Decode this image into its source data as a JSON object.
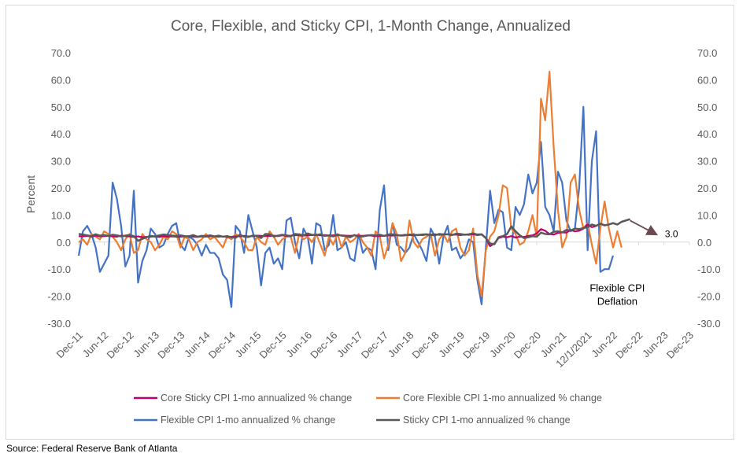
{
  "source": "Source: Federal Reserve Bank of Atlanta",
  "chart_data": {
    "type": "line",
    "title": "Core, Flexible, and Sticky CPI, 1-Month Change, Annualized",
    "ylabel": "Percent",
    "ylim": [
      -30,
      70
    ],
    "y_ticks": [
      "70.0",
      "60.0",
      "50.0",
      "40.0",
      "30.0",
      "20.0",
      "10.0",
      "0.0",
      "-10.0",
      "-20.0",
      "-30.0"
    ],
    "y_tick_values": [
      70,
      60,
      50,
      40,
      30,
      20,
      10,
      0,
      -10,
      -20,
      -30
    ],
    "x_tick_labels": [
      "Dec-11",
      "Jun-12",
      "Dec-12",
      "Jun-13",
      "Dec-13",
      "Jun-14",
      "Dec-14",
      "Jun-15",
      "Dec-15",
      "Jun-16",
      "Dec-16",
      "Jun-17",
      "Dec-17",
      "Jun-18",
      "Dec-18",
      "Jun-19",
      "Dec-19",
      "Jun-20",
      "Dec-20",
      "Jun-21",
      "12/1/2021",
      "Jun-22",
      "Dec-22",
      "Jun-23",
      "Dec-23"
    ],
    "x_start": "Dec-11",
    "x_end": "Dec-23",
    "grid": false,
    "legend_position": "bottom",
    "annotations": [
      {
        "text": "3.0",
        "from": {
          "x": "Oct-22",
          "y": 8.0
        },
        "to": {
          "x": "Apr-23",
          "y": 3.0
        },
        "color": "#6b4a52"
      },
      {
        "text": "Flexible CPI",
        "x": "Jul-22",
        "y": -17
      },
      {
        "text": "Deflation",
        "x": "Jul-22",
        "y": -22
      }
    ],
    "series": [
      {
        "name": "Core Sticky CPI 1-mo annualized % change",
        "color": "#c0006b",
        "values": [
          2.2,
          2.1,
          2.3,
          2.0,
          2.4,
          2.1,
          2.2,
          2.3,
          2.1,
          2.0,
          2.4,
          2.2,
          2.1,
          1.9,
          2.1,
          1.8,
          1.9,
          2.0,
          2.1,
          1.9,
          2.2,
          2.0,
          2.1,
          2.0,
          2.0,
          2.1,
          2.2,
          2.0,
          1.9,
          2.1,
          2.0,
          2.2,
          2.1,
          2.0,
          2.1,
          1.9,
          2.0,
          2.1,
          2.2,
          2.3,
          2.1,
          2.2,
          2.4,
          2.3,
          2.2,
          2.3,
          2.4,
          2.2,
          2.5,
          2.3,
          2.4,
          2.6,
          2.5,
          2.4,
          2.5,
          2.6,
          2.7,
          2.5,
          2.6,
          2.4,
          2.5,
          2.6,
          2.5,
          2.4,
          2.3,
          2.5,
          2.4,
          2.3,
          2.5,
          2.4,
          2.2,
          2.3,
          2.3,
          2.5,
          2.4,
          2.6,
          2.5,
          2.7,
          2.6,
          2.5,
          2.7,
          2.6,
          2.8,
          2.7,
          2.9,
          2.7,
          2.8,
          2.9,
          2.7,
          2.8,
          2.6,
          2.8,
          2.7,
          2.9,
          2.6,
          2.8,
          1.5,
          -1.5,
          -0.5,
          1.5,
          2.0,
          1.8,
          2.2,
          1.7,
          2.0,
          1.9,
          2.3,
          2.5,
          3.2,
          4.8,
          4.2,
          3.0,
          2.8,
          3.4,
          3.6,
          3.5,
          4.5,
          4.0,
          4.2,
          5.0,
          6.5,
          5.5,
          6.0,
          6.8,
          6.2,
          6.5,
          7.0,
          6.5,
          7.5,
          8.0
        ]
      },
      {
        "name": "Core Flexible CPI 1-mo annualized % change",
        "color": "#ed7d31",
        "values": [
          0,
          1,
          -1,
          3,
          2,
          1,
          4,
          3,
          2,
          0,
          -3,
          1,
          3,
          -4,
          -3,
          3,
          1,
          0,
          -3,
          -1,
          2,
          1,
          4,
          3,
          -2,
          2,
          1,
          -3,
          0,
          1,
          3,
          1,
          2,
          0,
          -2,
          2,
          1,
          3,
          2,
          0,
          -3,
          -3,
          2,
          0,
          -1,
          4,
          2,
          -1,
          1,
          2,
          2,
          -4,
          3,
          1,
          2,
          0,
          3,
          -1,
          -5,
          2,
          -1,
          3,
          -2,
          2,
          0,
          1,
          3,
          0,
          -2,
          -5,
          4,
          2,
          -6,
          -1,
          7,
          3,
          -7,
          -4,
          8,
          0,
          -2,
          1,
          2,
          3,
          -5,
          1,
          3,
          0,
          4,
          5,
          -2,
          -5,
          -3,
          5,
          -12,
          -20,
          -3,
          2,
          4,
          10,
          21,
          20,
          5,
          3,
          -1,
          0,
          4,
          10,
          2,
          53,
          45,
          63,
          35,
          12,
          -2,
          2,
          22,
          25,
          12,
          5,
          7,
          -1,
          -8,
          5,
          15,
          5,
          -2,
          4,
          -2
        ]
      },
      {
        "name": "Flexible CPI 1-mo annualized % change",
        "color": "#4472c4",
        "values": [
          -5,
          4,
          6,
          3,
          -2,
          -11,
          -8,
          -5,
          22,
          16,
          6,
          -9,
          -5,
          19,
          -15,
          -7,
          -3,
          5,
          3,
          -2,
          -1,
          3,
          6,
          7,
          -1,
          -3,
          2,
          1,
          -1,
          -5,
          -1,
          -4,
          -4,
          -6,
          -12,
          -14,
          -24,
          6,
          4,
          -4,
          10,
          4,
          -2,
          -16,
          -4,
          -2,
          -8,
          -6,
          -10,
          8,
          9,
          0,
          -6,
          5,
          2,
          -8,
          7,
          6,
          -3,
          -1,
          10,
          -3,
          -2,
          0,
          -6,
          -7,
          3,
          -4,
          -2,
          -3,
          -10,
          12,
          21,
          -3,
          7,
          -1,
          -2,
          -4,
          -2,
          3,
          0,
          -3,
          -7,
          5,
          2,
          -8,
          2,
          6,
          -3,
          -2,
          -6,
          -4,
          1,
          0,
          -14,
          -23,
          -2,
          19,
          7,
          12,
          11,
          -2,
          -3,
          13,
          10,
          14,
          25,
          18,
          22,
          37,
          13,
          10,
          4,
          26,
          22,
          8,
          4,
          5,
          20,
          50,
          -3,
          30,
          41,
          -11,
          -10,
          -10,
          -5
        ]
      },
      {
        "name": "Sticky CPI 1-mo annualized % change",
        "color": "#595959",
        "values": [
          3.0,
          2.8,
          2.5,
          2.2,
          2.9,
          2.4,
          2.6,
          2.3,
          2.7,
          2.5,
          2.1,
          2.4,
          2.6,
          2.2,
          0.5,
          1.2,
          1.8,
          2.3,
          2.1,
          2.5,
          2.8,
          2.6,
          2.4,
          2.3,
          2.5,
          2.2,
          2.1,
          2.6,
          2.0,
          2.3,
          2.2,
          2.5,
          2.1,
          2.4,
          2.0,
          2.2,
          1.8,
          1.6,
          2.7,
          2.0,
          1.9,
          2.4,
          2.3,
          1.5,
          3.0,
          2.9,
          2.1,
          2.4,
          2.7,
          2.5,
          2.2,
          3.0,
          2.8,
          2.5,
          3.2,
          2.7,
          2.6,
          2.9,
          2.3,
          2.5,
          2.1,
          2.8,
          2.4,
          2.2,
          1.8,
          2.6,
          2.0,
          2.1,
          2.4,
          2.6,
          2.5,
          2.7,
          2.3,
          2.8,
          2.9,
          2.6,
          2.4,
          2.5,
          2.8,
          2.7,
          2.6,
          2.8,
          2.9,
          2.7,
          2.5,
          3.0,
          2.8,
          2.9,
          2.6,
          3.1,
          3.0,
          2.7,
          2.9,
          3.2,
          2.8,
          2.9,
          1.5,
          -0.5,
          -0.8,
          1.8,
          2.2,
          3.0,
          5.8,
          4.0,
          2.5,
          1.5,
          1.8,
          2.2,
          2.0,
          3.5,
          3.0,
          2.9,
          3.8,
          4.0,
          3.6,
          4.5,
          4.3,
          5.0,
          4.8,
          5.2,
          5.5,
          6.5,
          6.0,
          6.8,
          6.2,
          6.5,
          7.0,
          6.5,
          7.5,
          8.0,
          8.5
        ]
      }
    ]
  }
}
